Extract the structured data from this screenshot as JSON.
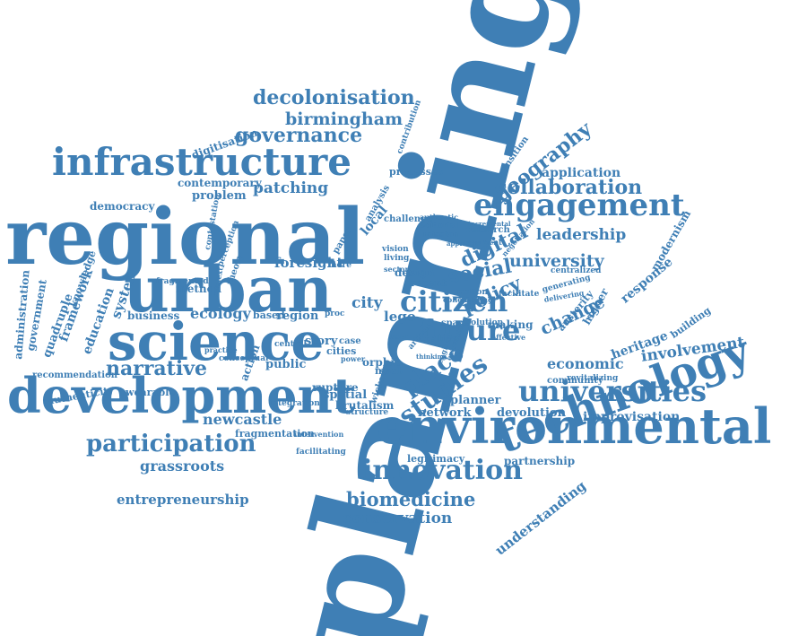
{
  "accent_color": "#3f7fb5",
  "words": [
    {
      "id": "planning",
      "text": "planning"
    },
    {
      "id": "regional",
      "text": "regional"
    },
    {
      "id": "urban",
      "text": "urban"
    },
    {
      "id": "science",
      "text": "science"
    },
    {
      "id": "development",
      "text": "development"
    },
    {
      "id": "environmental",
      "text": "environmental"
    },
    {
      "id": "technology",
      "text": "technology"
    },
    {
      "id": "infrastructure",
      "text": "infrastructure"
    },
    {
      "id": "engagement",
      "text": "engagement"
    },
    {
      "id": "universities",
      "text": "universities"
    },
    {
      "id": "innovation",
      "text": "innovation"
    },
    {
      "id": "future",
      "text": "future"
    },
    {
      "id": "citizen",
      "text": "citizen"
    },
    {
      "id": "participation",
      "text": "participation"
    },
    {
      "id": "collaboration",
      "text": "collaboration"
    },
    {
      "id": "narrative",
      "text": "narrative"
    },
    {
      "id": "governance",
      "text": "governance"
    },
    {
      "id": "decolonisation",
      "text": "decolonisation"
    },
    {
      "id": "birmingham",
      "text": "birmingham"
    },
    {
      "id": "geography",
      "text": "geography"
    },
    {
      "id": "studies",
      "text": "studies"
    },
    {
      "id": "place",
      "text": "place"
    },
    {
      "id": "policy",
      "text": "policy"
    },
    {
      "id": "social",
      "text": "social"
    },
    {
      "id": "digital",
      "text": "digital"
    },
    {
      "id": "change",
      "text": "change"
    },
    {
      "id": "university",
      "text": "university"
    },
    {
      "id": "leadership",
      "text": "leadership"
    },
    {
      "id": "application",
      "text": "application"
    },
    {
      "id": "response",
      "text": "response"
    },
    {
      "id": "involvement",
      "text": "involvement"
    },
    {
      "id": "economic",
      "text": "economic"
    },
    {
      "id": "heritage",
      "text": "heritage"
    },
    {
      "id": "modernism",
      "text": "modernism"
    },
    {
      "id": "building",
      "text": "building"
    },
    {
      "id": "higher",
      "text": "higher"
    },
    {
      "id": "austerity",
      "text": "austerity"
    },
    {
      "id": "patching",
      "text": "patching"
    },
    {
      "id": "foresight",
      "text": "foresight"
    },
    {
      "id": "education",
      "text": "education"
    },
    {
      "id": "system",
      "text": "system"
    },
    {
      "id": "framework",
      "text": "framework"
    },
    {
      "id": "quadruple",
      "text": "quadruple"
    },
    {
      "id": "government",
      "text": "government"
    },
    {
      "id": "administration",
      "text": "administration"
    },
    {
      "id": "knowledge",
      "text": "knowledge"
    },
    {
      "id": "democracy",
      "text": "democracy"
    },
    {
      "id": "contemporary",
      "text": "contemporary"
    },
    {
      "id": "problem",
      "text": "problem"
    },
    {
      "id": "digitisation",
      "text": "digitisation"
    },
    {
      "id": "ecology",
      "text": "ecology"
    },
    {
      "id": "business",
      "text": "business"
    },
    {
      "id": "method",
      "text": "method"
    },
    {
      "id": "region",
      "text": "region"
    },
    {
      "id": "based",
      "text": "based"
    },
    {
      "id": "city",
      "text": "city"
    },
    {
      "id": "lego",
      "text": "lego"
    },
    {
      "id": "story",
      "text": "story"
    },
    {
      "id": "cities",
      "text": "cities"
    },
    {
      "id": "orphic",
      "text": "orphic"
    },
    {
      "id": "mash",
      "text": "mash"
    },
    {
      "id": "public",
      "text": "public"
    },
    {
      "id": "action",
      "text": "action"
    },
    {
      "id": "rupture",
      "text": "rupture"
    },
    {
      "id": "spatial",
      "text": "spatial"
    },
    {
      "id": "brutalism",
      "text": "brutalism"
    },
    {
      "id": "structure",
      "text": "structure"
    },
    {
      "id": "newcastle",
      "text": "newcastle"
    },
    {
      "id": "fragmentation",
      "text": "fragmentation"
    },
    {
      "id": "integration",
      "text": "integration"
    },
    {
      "id": "grassroots",
      "text": "grassroots"
    },
    {
      "id": "entrepreneurship",
      "text": "entrepreneurship"
    },
    {
      "id": "biomedicine",
      "text": "biomedicine"
    },
    {
      "id": "conservation",
      "text": "conservation"
    },
    {
      "id": "network",
      "text": "network"
    },
    {
      "id": "devolution",
      "text": "devolution"
    },
    {
      "id": "planner",
      "text": "planner"
    },
    {
      "id": "improvisation",
      "text": "improvisation"
    },
    {
      "id": "legitimacy",
      "text": "legitimacy"
    },
    {
      "id": "partnership",
      "text": "partnership"
    },
    {
      "id": "understanding",
      "text": "understanding"
    },
    {
      "id": "community",
      "text": "community"
    },
    {
      "id": "revitalizing",
      "text": "revitalizing"
    },
    {
      "id": "recommendation",
      "text": "recommendation"
    },
    {
      "id": "authenticity",
      "text": "authenticity"
    },
    {
      "id": "wearable",
      "text": "wearable"
    },
    {
      "id": "conceptual",
      "text": "conceptual"
    },
    {
      "id": "design",
      "text": "design"
    },
    {
      "id": "recent",
      "text": "recent"
    },
    {
      "id": "processes",
      "text": "processes"
    },
    {
      "id": "transition",
      "text": "transition"
    },
    {
      "id": "research",
      "text": "research"
    },
    {
      "id": "mission",
      "text": "mission"
    },
    {
      "id": "editorial",
      "text": "editorial"
    },
    {
      "id": "challenge",
      "text": "challenge"
    },
    {
      "id": "local",
      "text": "local"
    },
    {
      "id": "analysis",
      "text": "analysis"
    },
    {
      "id": "paper",
      "text": "paper"
    },
    {
      "id": "theory",
      "text": "theory"
    },
    {
      "id": "fragmented",
      "text": "fragmented"
    },
    {
      "id": "contestation",
      "text": "contestation"
    },
    {
      "id": "perception",
      "text": "perception"
    },
    {
      "id": "making",
      "text": "making"
    },
    {
      "id": "space",
      "text": "space"
    },
    {
      "id": "solution",
      "text": "solution"
    },
    {
      "id": "creation",
      "text": "creation"
    },
    {
      "id": "facilitate",
      "text": "facilitate"
    },
    {
      "id": "living",
      "text": "living"
    },
    {
      "id": "vision",
      "text": "vision"
    },
    {
      "id": "centralized",
      "text": "centralized"
    },
    {
      "id": "generating",
      "text": "generating"
    },
    {
      "id": "delivering",
      "text": "delivering"
    },
    {
      "id": "more",
      "text": "more"
    },
    {
      "id": "case",
      "text": "case"
    },
    {
      "id": "telling",
      "text": "telling"
    },
    {
      "id": "wicked",
      "text": "wicked"
    },
    {
      "id": "article",
      "text": "article"
    },
    {
      "id": "contribution",
      "text": "contribution"
    },
    {
      "id": "authentic",
      "text": "authentic"
    },
    {
      "id": "proc",
      "text": "proc"
    },
    {
      "id": "user",
      "text": "user"
    },
    {
      "id": "negotiation",
      "text": "negotiation"
    },
    {
      "id": "effective",
      "text": "effective"
    },
    {
      "id": "facilitating",
      "text": "facilitating"
    },
    {
      "id": "intervention",
      "text": "intervention"
    },
    {
      "id": "central",
      "text": "central"
    },
    {
      "id": "practice",
      "text": "practice"
    },
    {
      "id": "argument",
      "text": "argument"
    },
    {
      "id": "shaping",
      "text": "shaping"
    },
    {
      "id": "incremental",
      "text": "incremental"
    },
    {
      "id": "collective",
      "text": "collective"
    },
    {
      "id": "sector",
      "text": "sector"
    },
    {
      "id": "context",
      "text": "context"
    },
    {
      "id": "approach",
      "text": "approach"
    },
    {
      "id": "england",
      "text": "england"
    },
    {
      "id": "thinking",
      "text": "thinking"
    },
    {
      "id": "power",
      "text": "power"
    },
    {
      "id": "examining",
      "text": "examining"
    }
  ]
}
